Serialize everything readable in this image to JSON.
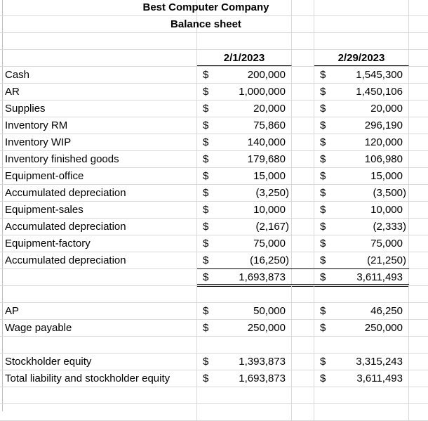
{
  "title": "Best Computer Company",
  "subtitle": "Balance sheet",
  "columns": [
    "2/1/2023",
    "2/29/2023"
  ],
  "currency": "$",
  "assets": [
    {
      "label": "Cash",
      "v1": "200,000",
      "v2": "1,545,300"
    },
    {
      "label": "AR",
      "v1": "1,000,000",
      "v2": "1,450,106"
    },
    {
      "label": "Supplies",
      "v1": "20,000",
      "v2": "20,000"
    },
    {
      "label": "Inventory RM",
      "v1": "75,860",
      "v2": "296,190"
    },
    {
      "label": "Inventory WIP",
      "v1": "140,000",
      "v2": "120,000"
    },
    {
      "label": "Inventory finished goods",
      "v1": "179,680",
      "v2": "106,980"
    },
    {
      "label": "Equipment-office",
      "v1": "15,000",
      "v2": "15,000"
    },
    {
      "label": "Accumulated depreciation",
      "v1": "(3,250)",
      "v2": "(3,500)"
    },
    {
      "label": "Equipment-sales",
      "v1": "10,000",
      "v2": "10,000"
    },
    {
      "label": "Accumulated depreciation",
      "v1": "(2,167)",
      "v2": "(2,333)"
    },
    {
      "label": "Equipment-factory",
      "v1": "75,000",
      "v2": "75,000"
    },
    {
      "label": "Accumulated depreciation",
      "v1": "(16,250)",
      "v2": "(21,250)"
    }
  ],
  "assets_total": {
    "v1": "1,693,873",
    "v2": "3,611,493"
  },
  "liabilities": [
    {
      "label": "AP",
      "v1": "50,000",
      "v2": "46,250"
    },
    {
      "label": "Wage payable",
      "v1": "250,000",
      "v2": "250,000"
    }
  ],
  "equity": [
    {
      "label": "Stockholder equity",
      "v1": "1,393,873",
      "v2": "3,315,243"
    },
    {
      "label": "Total liability and stockholder equity",
      "v1": "1,693,873",
      "v2": "3,611,493"
    }
  ]
}
